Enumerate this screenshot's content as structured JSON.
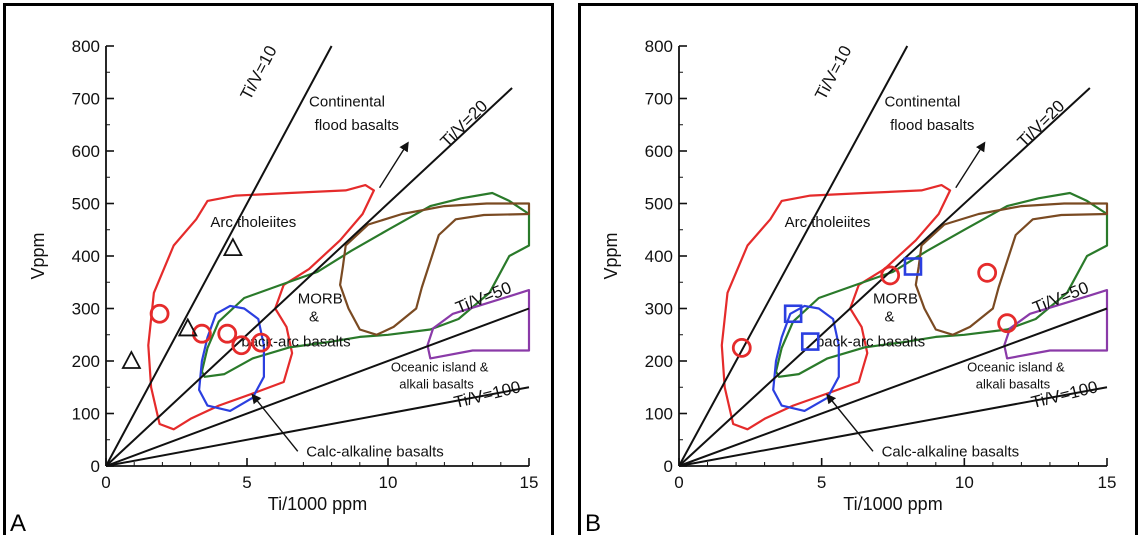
{
  "chart_data": [
    {
      "panel_label": "A",
      "type": "scatter",
      "xlabel": "Ti/1000 ppm",
      "ylabel": "Vppm",
      "xlim": [
        0,
        15
      ],
      "ylim": [
        0,
        800
      ],
      "xticks": [
        0,
        5,
        10,
        15
      ],
      "yticks": [
        0,
        100,
        200,
        300,
        400,
        500,
        600,
        700,
        800
      ],
      "ratio_lines": [
        {
          "label": "Ti/V=10",
          "ratio": 10
        },
        {
          "label": "Ti/V=20",
          "ratio": 20
        },
        {
          "label": "Ti/V=50",
          "ratio": 50
        },
        {
          "label": "Ti/V=100",
          "ratio": 100
        }
      ],
      "fields": [
        {
          "label": "Arc tholeiites",
          "color": "#e52b2b"
        },
        {
          "label": "MORB & back-arc basalts",
          "color": "#2a7a2a"
        },
        {
          "label": "Continental flood basalts",
          "color": "#7a4a22"
        },
        {
          "label": "Oceanic island & alkali basalts",
          "color": "#8a3aa8"
        },
        {
          "label": "Calc-alkaline basalts",
          "color": "#2b3fe0"
        }
      ],
      "annotations": [
        "Arc tholeiites",
        "MORB",
        "&",
        "back-arc basalts",
        "Continental",
        "flood basalts",
        "Oceanic island &",
        "alkali basalts",
        "Calc-alkaline basalts"
      ],
      "series": [
        {
          "marker": "circle",
          "color": "#e52b2b",
          "points": [
            [
              1.9,
              290
            ],
            [
              3.4,
              252
            ],
            [
              4.3,
              252
            ],
            [
              4.8,
              230
            ],
            [
              5.5,
              235
            ]
          ]
        },
        {
          "marker": "triangle",
          "color": "#111111",
          "points": [
            [
              0.9,
              200
            ],
            [
              2.9,
              262
            ],
            [
              4.5,
              415
            ]
          ]
        }
      ]
    },
    {
      "panel_label": "B",
      "type": "scatter",
      "xlabel": "Ti/1000 ppm",
      "ylabel": "Vppm",
      "xlim": [
        0,
        15
      ],
      "ylim": [
        0,
        800
      ],
      "xticks": [
        0,
        5,
        10,
        15
      ],
      "yticks": [
        0,
        100,
        200,
        300,
        400,
        500,
        600,
        700,
        800
      ],
      "ratio_lines": [
        {
          "label": "Ti/V=10",
          "ratio": 10
        },
        {
          "label": "Ti/V=20",
          "ratio": 20
        },
        {
          "label": "Ti/V=50",
          "ratio": 50
        },
        {
          "label": "Ti/V=100",
          "ratio": 100
        }
      ],
      "fields": [
        {
          "label": "Arc tholeiites",
          "color": "#e52b2b"
        },
        {
          "label": "MORB & back-arc basalts",
          "color": "#2a7a2a"
        },
        {
          "label": "Continental flood basalts",
          "color": "#7a4a22"
        },
        {
          "label": "Oceanic island & alkali basalts",
          "color": "#8a3aa8"
        },
        {
          "label": "Calc-alkaline basalts",
          "color": "#2b3fe0"
        }
      ],
      "annotations": [
        "Arc tholeiites",
        "MORB",
        "&",
        "back-arc basalts",
        "Continental",
        "flood basalts",
        "Oceanic island &",
        "alkali basalts",
        "Calc-alkaline basalts"
      ],
      "series": [
        {
          "marker": "circle",
          "color": "#e52b2b",
          "points": [
            [
              2.2,
              225
            ],
            [
              7.4,
              363
            ],
            [
              10.8,
              368
            ],
            [
              11.5,
              272
            ]
          ]
        },
        {
          "marker": "square",
          "color": "#2b3fe0",
          "points": [
            [
              4.0,
              290
            ],
            [
              4.6,
              237
            ],
            [
              8.2,
              380
            ]
          ]
        }
      ]
    }
  ]
}
